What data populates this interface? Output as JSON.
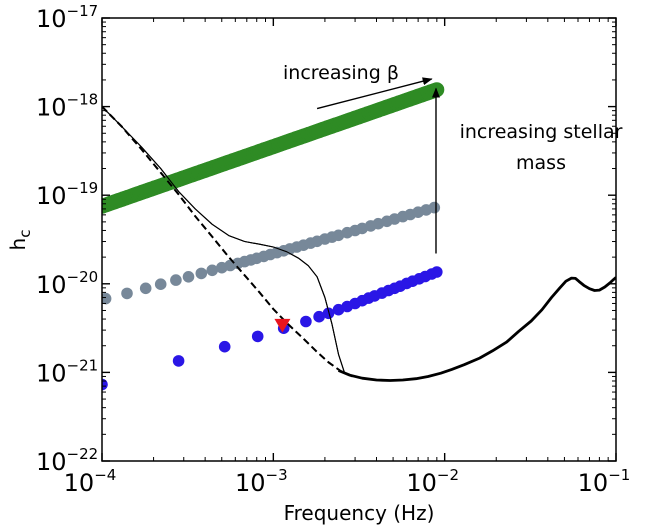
{
  "chart_data": {
    "type": "scatter",
    "title": "",
    "xlabel": "Frequency (Hz)",
    "ylabel_main": "h",
    "ylabel_sub": "c",
    "x_scale": "log",
    "y_scale": "log",
    "xlim": [
      0.0001,
      0.1
    ],
    "ylim": [
      1e-22,
      1e-17
    ],
    "grid": false,
    "legend": "none",
    "x_ticks": [
      {
        "value": 0.0001,
        "base": "10",
        "exp": "−4"
      },
      {
        "value": 0.001,
        "base": "10",
        "exp": "−3"
      },
      {
        "value": 0.01,
        "base": "10",
        "exp": "−2"
      },
      {
        "value": 0.1,
        "base": "10",
        "exp": "−1"
      }
    ],
    "y_ticks": [
      {
        "value": 1e-17,
        "base": "10",
        "exp": "−17"
      },
      {
        "value": 1e-18,
        "base": "10",
        "exp": "−18"
      },
      {
        "value": 1e-19,
        "base": "10",
        "exp": "−19"
      },
      {
        "value": 1e-20,
        "base": "10",
        "exp": "−20"
      },
      {
        "value": 1e-21,
        "base": "10",
        "exp": "−21"
      },
      {
        "value": 1e-22,
        "base": "10",
        "exp": "−22"
      }
    ],
    "series": [
      {
        "color": "#2e8b24",
        "marker": "circle",
        "marker_size": "large",
        "x_range": [
          0.0001,
          0.009
        ],
        "y_range": [
          7.5e-20,
          1.55e-18
        ],
        "n_points": 160
      },
      {
        "color": "#778899",
        "marker": "circle",
        "marker_size": "medium",
        "x": [
          0.000105,
          0.00014,
          0.00018,
          0.00022,
          0.00027,
          0.00032,
          0.00038,
          0.00044,
          0.0005,
          0.00056,
          0.00062,
          0.00068,
          0.00074,
          0.0008,
          0.00088,
          0.00096,
          0.00105,
          0.00115,
          0.00125,
          0.00137,
          0.0015,
          0.00165,
          0.0018,
          0.002,
          0.0022,
          0.0024,
          0.0027,
          0.003,
          0.0033,
          0.0037,
          0.0041,
          0.0046,
          0.0051,
          0.0057,
          0.0063,
          0.007,
          0.0078,
          0.0087
        ],
        "y": [
          6.8e-21,
          7.8e-21,
          8.9e-21,
          9.9e-21,
          1.1e-20,
          1.2e-20,
          1.31e-20,
          1.42e-20,
          1.52e-20,
          1.61e-20,
          1.7e-20,
          1.78e-20,
          1.86e-20,
          1.94e-20,
          2.04e-20,
          2.14e-20,
          2.25e-20,
          2.36e-20,
          2.48e-20,
          2.6e-20,
          2.73e-20,
          2.88e-20,
          3.02e-20,
          3.2e-20,
          3.37e-20,
          3.53e-20,
          3.77e-20,
          4e-20,
          4.22e-20,
          4.5e-20,
          4.77e-20,
          5.08e-20,
          5.39e-20,
          5.73e-20,
          6.06e-20,
          6.43e-20,
          6.83e-20,
          7.25e-20
        ]
      },
      {
        "color": "#2a16e6",
        "marker": "circle",
        "marker_size": "medium",
        "x": [
          0.0001,
          0.00028,
          0.00052,
          0.00081,
          0.00115,
          0.00155,
          0.00185,
          0.0021,
          0.0024,
          0.0027,
          0.003,
          0.0033,
          0.0036,
          0.0039,
          0.0043,
          0.0047,
          0.0051,
          0.0055,
          0.006,
          0.0065,
          0.0071,
          0.0077,
          0.0084,
          0.009
        ],
        "y": [
          7.3e-22,
          1.35e-21,
          1.95e-21,
          2.55e-21,
          3.15e-21,
          3.75e-21,
          4.25e-21,
          4.65e-21,
          5.1e-21,
          5.55e-21,
          6e-21,
          6.45e-21,
          6.9e-21,
          7.3e-21,
          7.85e-21,
          8.4e-21,
          8.9e-21,
          9.4e-21,
          1.01e-20,
          1.07e-20,
          1.14e-20,
          1.21e-20,
          1.29e-20,
          1.36e-20
        ]
      },
      {
        "color": "#000000",
        "line": "solid",
        "line_width": "thin",
        "x": [
          0.0001,
          0.00013,
          0.00017,
          0.00022,
          0.00028,
          0.00035,
          0.00044,
          0.00055,
          0.00068,
          0.00083,
          0.001,
          0.0012,
          0.0014,
          0.0016,
          0.0018,
          0.002,
          0.0022,
          0.0024,
          0.0026
        ],
        "y": [
          1e-18,
          6e-19,
          3.5e-19,
          2e-19,
          1.1e-19,
          7e-20,
          4.7e-20,
          3.5e-20,
          3e-20,
          2.8e-20,
          2.6e-20,
          2.3e-20,
          1.95e-20,
          1.6e-20,
          1.2e-20,
          7e-21,
          3.5e-21,
          1.6e-21,
          1e-21
        ]
      },
      {
        "color": "#000000",
        "line": "dashed",
        "line_width": "medium",
        "x": [
          0.0001,
          0.00013,
          0.00017,
          0.00022,
          0.00028,
          0.00035,
          0.00044,
          0.00055,
          0.00068,
          0.00083,
          0.001,
          0.0012,
          0.0015,
          0.0018,
          0.0021,
          0.0025,
          0.0029
        ],
        "y": [
          1e-18,
          6e-19,
          3.3e-19,
          1.8e-19,
          1.02e-19,
          5.8e-20,
          3.4e-20,
          2e-20,
          1.25e-20,
          8e-21,
          5.2e-21,
          3.6e-21,
          2.4e-21,
          1.7e-21,
          1.3e-21,
          1.02e-21,
          9e-22
        ]
      },
      {
        "color": "#000000",
        "line": "solid",
        "line_width": "thick",
        "x": [
          0.0024,
          0.0028,
          0.0033,
          0.004,
          0.0048,
          0.0057,
          0.0068,
          0.008,
          0.0095,
          0.011,
          0.013,
          0.016,
          0.019,
          0.023,
          0.027,
          0.032,
          0.037,
          0.042,
          0.047,
          0.051,
          0.055,
          0.058,
          0.061,
          0.065,
          0.07,
          0.075,
          0.08,
          0.086,
          0.092,
          0.097,
          0.1
        ],
        "y": [
          1.05e-21,
          9.3e-22,
          8.6e-22,
          8.2e-22,
          8.1e-22,
          8.2e-22,
          8.5e-22,
          9e-22,
          9.8e-22,
          1.08e-21,
          1.22e-21,
          1.45e-21,
          1.75e-21,
          2.2e-21,
          2.9e-21,
          3.8e-21,
          5.1e-21,
          7e-21,
          9e-21,
          1.07e-20,
          1.16e-20,
          1.15e-20,
          1.06e-20,
          9.6e-21,
          8.8e-21,
          8.4e-21,
          8.5e-21,
          9.2e-21,
          1.02e-20,
          1.12e-20,
          1.18e-20
        ]
      }
    ],
    "markers": [
      {
        "shape": "triangle-down",
        "color": "#e8141e",
        "x": 0.00113,
        "y": 3.4e-21
      }
    ],
    "annotations": [
      {
        "id": "increasing-beta",
        "text": "increasing β",
        "arrow": {
          "x1": 0.0018,
          "y1": 9.5e-19,
          "x2": 0.0084,
          "y2": 2.05e-18
        }
      },
      {
        "id": "increasing-stellar-mass",
        "lines": [
          "increasing stellar",
          "mass"
        ],
        "arrow": {
          "x1": 0.0089,
          "y1": 2.2e-20,
          "x2": 0.0089,
          "y2": 1.6e-18
        }
      }
    ]
  }
}
